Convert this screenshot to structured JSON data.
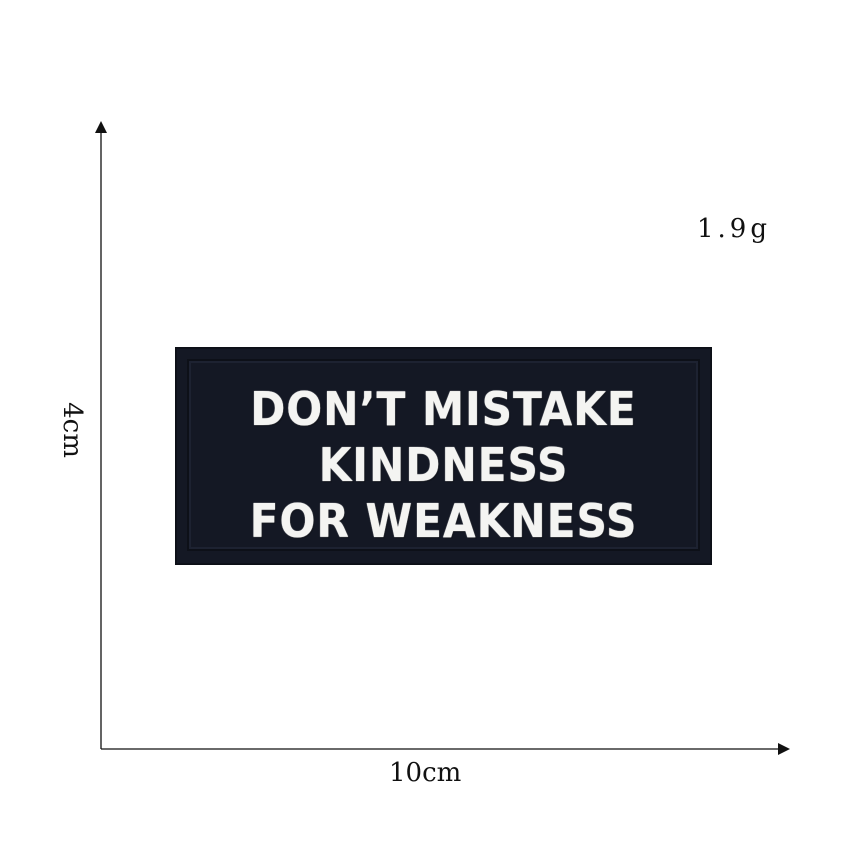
{
  "dimensions": {
    "height": "4cm",
    "width": "10cm",
    "weight": "1.9g"
  },
  "patch": {
    "lines": [
      "DON’T MISTAKE",
      "KINDNESS",
      "FOR WEAKNESS"
    ],
    "background_color": "#141824",
    "text_color": "#f4f4f2"
  }
}
